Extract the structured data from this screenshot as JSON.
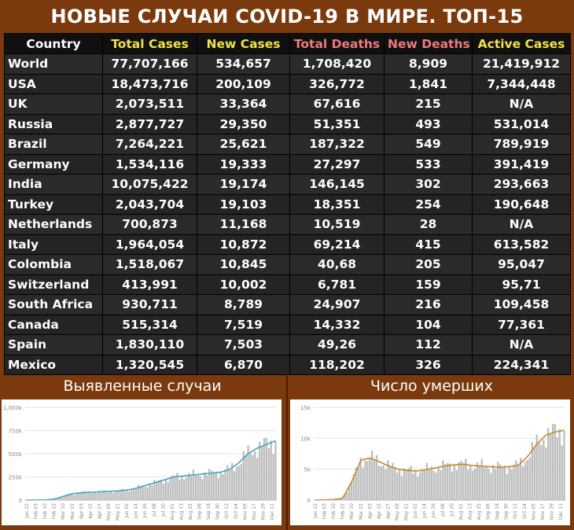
{
  "title": "НОВЫЕ СЛУЧАИ COVID-19 В МИРЕ. ТОП-15",
  "headers": [
    {
      "label": "Country",
      "color": "#ffffff"
    },
    {
      "label": "Total Cases",
      "color": "#f2e24a"
    },
    {
      "label": "New Cases",
      "color": "#f2e24a"
    },
    {
      "label": "Total Deaths",
      "color": "#f07a7a"
    },
    {
      "label": "New Deaths",
      "color": "#f07a7a"
    },
    {
      "label": "Active Cases",
      "color": "#f2e24a"
    }
  ],
  "rows": [
    [
      "World",
      "77,707,166",
      "534,657",
      "1,708,420",
      "8,909",
      "21,419,912"
    ],
    [
      "USA",
      "18,473,716",
      "200,109",
      "326,772",
      "1,841",
      "7,344,448"
    ],
    [
      "UK",
      "2,073,511",
      "33,364",
      "67,616",
      "215",
      "N/A"
    ],
    [
      "Russia",
      "2,877,727",
      "29,350",
      "51,351",
      "493",
      "531,014"
    ],
    [
      "Brazil",
      "7,264,221",
      "25,621",
      "187,322",
      "549",
      "789,919"
    ],
    [
      "Germany",
      "1,534,116",
      "19,333",
      "27,297",
      "533",
      "391,419"
    ],
    [
      "India",
      "10,075,422",
      "19,174",
      "146,145",
      "302",
      "293,663"
    ],
    [
      "Turkey",
      "2,043,704",
      "19,103",
      "18,351",
      "254",
      "190,648"
    ],
    [
      "Netherlands",
      "700,873",
      "11,168",
      "10,519",
      "28",
      "N/A"
    ],
    [
      "Italy",
      "1,964,054",
      "10,872",
      "69,214",
      "415",
      "613,582"
    ],
    [
      "Colombia",
      "1,518,067",
      "10,845",
      "40,68",
      "205",
      "95,047"
    ],
    [
      "Switzerland",
      "413,991",
      "10,002",
      "6,781",
      "159",
      "95,71"
    ],
    [
      "South Africa",
      "930,711",
      "8,789",
      "24,907",
      "216",
      "109,458"
    ],
    [
      "Canada",
      "515,314",
      "7,519",
      "14,332",
      "104",
      "77,361"
    ],
    [
      "Spain",
      "1,830,110",
      "7,503",
      "49,26",
      "112",
      "N/A"
    ],
    [
      "Mexico",
      "1,320,545",
      "6,870",
      "118,202",
      "326",
      "224,341"
    ]
  ],
  "chart_data": [
    {
      "type": "bar",
      "title": "Выявленные случаи",
      "bar_color": "#bdbdbd",
      "line_color": "#4aa3c9",
      "yticks": [
        "0",
        "250k",
        "500k",
        "750k",
        "1,000k"
      ],
      "ylim": [
        0,
        1000000
      ],
      "xticks": [
        "Jan 22",
        "Feb 03",
        "Feb 10",
        "Feb 22",
        "Mar 10",
        "Mar 22",
        "Apr 03",
        "Apr 15",
        "Apr 27",
        "May 09",
        "May 21",
        "Jun 02",
        "Jun 14",
        "Jun 26",
        "Jul 08",
        "Jul 20",
        "Aug 01",
        "Aug 13",
        "Aug 25",
        "Sep 06",
        "Sep 18",
        "Sep 30",
        "Oct 12",
        "Oct 24",
        "Nov 05",
        "Nov 17",
        "Nov 29",
        "Dec 11"
      ],
      "weekly_avg": [
        1000,
        2000,
        3000,
        10000,
        40000,
        70000,
        80000,
        85000,
        90000,
        95000,
        100000,
        110000,
        130000,
        160000,
        190000,
        220000,
        250000,
        260000,
        270000,
        280000,
        290000,
        300000,
        330000,
        400000,
        500000,
        560000,
        600000,
        640000
      ]
    },
    {
      "type": "bar",
      "title": "Число умерших",
      "bar_color": "#bdbdbd",
      "line_color": "#c98a2a",
      "yticks": [
        "0",
        "5k",
        "10k",
        "15k"
      ],
      "ylim": [
        0,
        15000
      ],
      "xticks": [
        "Jan 22",
        "Feb 03",
        "Feb 10",
        "Feb 22",
        "Mar 10",
        "Mar 22",
        "Apr 03",
        "Apr 15",
        "Apr 27",
        "May 09",
        "May 21",
        "Jun 02",
        "Jun 14",
        "Jun 26",
        "Jul 08",
        "Jul 20",
        "Aug 01",
        "Aug 13",
        "Aug 25",
        "Sep 06",
        "Sep 18",
        "Sep 30",
        "Oct 12",
        "Oct 24",
        "Nov 05",
        "Nov 17",
        "Nov 29",
        "Dec 11"
      ],
      "weekly_avg": [
        20,
        50,
        100,
        300,
        3000,
        6500,
        6800,
        6200,
        5500,
        5000,
        4800,
        4700,
        4900,
        5200,
        5500,
        5700,
        5800,
        5600,
        5500,
        5400,
        5300,
        5400,
        5600,
        7000,
        9000,
        10500,
        11000,
        11300
      ]
    }
  ]
}
